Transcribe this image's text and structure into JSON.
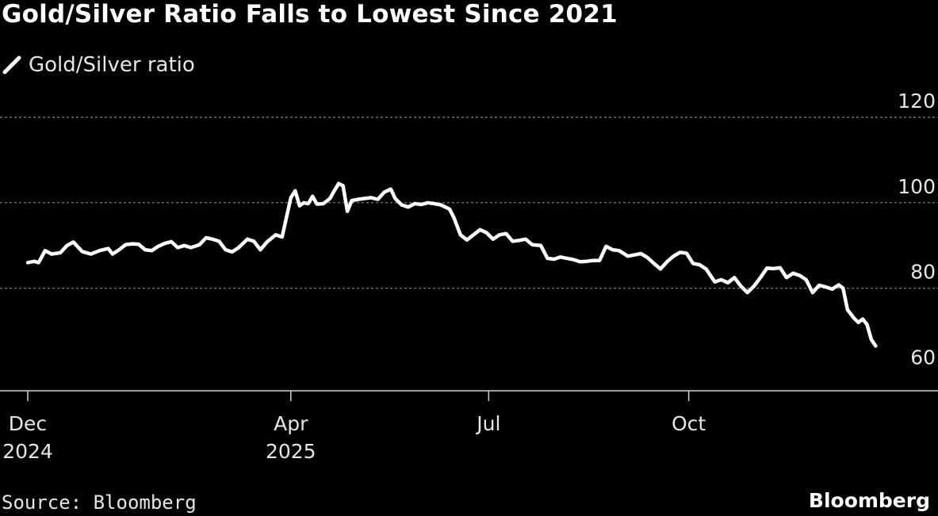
{
  "header": {
    "title": "Gold/Silver Ratio Falls to Lowest Since 2021"
  },
  "footer": {
    "source": "Source: Bloomberg",
    "brand": "Bloomberg"
  },
  "colors": {
    "background": "#000000",
    "line": "#ffffff",
    "grid": "#8a8a8a",
    "text": "#e6e6e6"
  },
  "chart_data": {
    "type": "line",
    "title": "Gold/Silver Ratio Falls to Lowest Since 2021",
    "legend": {
      "entries": [
        "Gold/Silver ratio"
      ],
      "placement": "top-left"
    },
    "grid": true,
    "ylim": [
      60,
      120
    ],
    "yticks": [
      60,
      80,
      100,
      120
    ],
    "y_axis_side": "right",
    "xlim": [
      "2024-12-01",
      "2025-12-31"
    ],
    "xticks": [
      {
        "date": "2024-12-01",
        "label": [
          "Dec",
          "2024"
        ]
      },
      {
        "date": "2025-04-01",
        "label": [
          "Apr",
          "2025"
        ]
      },
      {
        "date": "2025-07-01",
        "label": [
          "Jul"
        ]
      },
      {
        "date": "2025-10-01",
        "label": [
          "Oct"
        ]
      }
    ],
    "series": [
      {
        "name": "Gold/Silver ratio",
        "points": [
          [
            "2024-12-01",
            86.0
          ],
          [
            "2024-12-04",
            86.3
          ],
          [
            "2024-12-06",
            86.0
          ],
          [
            "2024-12-09",
            88.8
          ],
          [
            "2024-12-12",
            88.0
          ],
          [
            "2024-12-16",
            88.3
          ],
          [
            "2024-12-19",
            90.0
          ],
          [
            "2024-12-22",
            90.8
          ],
          [
            "2024-12-26",
            88.6
          ],
          [
            "2024-12-30",
            88.0
          ],
          [
            "2025-01-03",
            88.8
          ],
          [
            "2025-01-07",
            89.3
          ],
          [
            "2025-01-09",
            88.0
          ],
          [
            "2025-01-12",
            89.0
          ],
          [
            "2025-01-15",
            90.2
          ],
          [
            "2025-01-18",
            90.4
          ],
          [
            "2025-01-21",
            90.3
          ],
          [
            "2025-01-24",
            89.0
          ],
          [
            "2025-01-27",
            88.8
          ],
          [
            "2025-01-30",
            89.8
          ],
          [
            "2025-02-02",
            90.5
          ],
          [
            "2025-02-05",
            90.9
          ],
          [
            "2025-02-08",
            89.5
          ],
          [
            "2025-02-11",
            90.0
          ],
          [
            "2025-02-14",
            89.5
          ],
          [
            "2025-02-18",
            90.2
          ],
          [
            "2025-02-21",
            91.8
          ],
          [
            "2025-02-24",
            91.5
          ],
          [
            "2025-02-27",
            91.0
          ],
          [
            "2025-03-02",
            89.0
          ],
          [
            "2025-03-05",
            88.5
          ],
          [
            "2025-03-08",
            89.5
          ],
          [
            "2025-03-12",
            91.5
          ],
          [
            "2025-03-15",
            91.0
          ],
          [
            "2025-03-18",
            89.0
          ],
          [
            "2025-03-21",
            90.8
          ],
          [
            "2025-03-25",
            92.5
          ],
          [
            "2025-03-28",
            92.0
          ],
          [
            "2025-04-01",
            101.2
          ],
          [
            "2025-04-03",
            102.8
          ],
          [
            "2025-04-05",
            99.3
          ],
          [
            "2025-04-07",
            100.0
          ],
          [
            "2025-04-09",
            99.8
          ],
          [
            "2025-04-11",
            101.5
          ],
          [
            "2025-04-13",
            99.7
          ],
          [
            "2025-04-16",
            99.8
          ],
          [
            "2025-04-19",
            101.0
          ],
          [
            "2025-04-21",
            102.8
          ],
          [
            "2025-04-23",
            104.5
          ],
          [
            "2025-04-25",
            104.0
          ],
          [
            "2025-04-27",
            98.0
          ],
          [
            "2025-04-29",
            100.5
          ],
          [
            "2025-05-02",
            100.8
          ],
          [
            "2025-05-05",
            101.0
          ],
          [
            "2025-05-08",
            101.2
          ],
          [
            "2025-05-11",
            100.8
          ],
          [
            "2025-05-14",
            102.5
          ],
          [
            "2025-05-17",
            103.2
          ],
          [
            "2025-05-19",
            101.0
          ],
          [
            "2025-05-22",
            99.5
          ],
          [
            "2025-05-25",
            99.0
          ],
          [
            "2025-05-28",
            99.8
          ],
          [
            "2025-05-31",
            99.6
          ],
          [
            "2025-06-03",
            100.0
          ],
          [
            "2025-06-06",
            99.8
          ],
          [
            "2025-06-09",
            99.5
          ],
          [
            "2025-06-13",
            98.5
          ],
          [
            "2025-06-15",
            96.5
          ],
          [
            "2025-06-18",
            92.5
          ],
          [
            "2025-06-21",
            91.3
          ],
          [
            "2025-06-24",
            92.5
          ],
          [
            "2025-06-27",
            93.7
          ],
          [
            "2025-06-30",
            93.0
          ],
          [
            "2025-07-03",
            91.5
          ],
          [
            "2025-07-06",
            92.5
          ],
          [
            "2025-07-09",
            92.8
          ],
          [
            "2025-07-12",
            91.0
          ],
          [
            "2025-07-15",
            91.2
          ],
          [
            "2025-07-18",
            91.5
          ],
          [
            "2025-07-21",
            90.2
          ],
          [
            "2025-07-25",
            90.0
          ],
          [
            "2025-07-28",
            87.0
          ],
          [
            "2025-07-31",
            86.8
          ],
          [
            "2025-08-03",
            87.3
          ],
          [
            "2025-08-06",
            87.0
          ],
          [
            "2025-08-09",
            86.7
          ],
          [
            "2025-08-12",
            86.2
          ],
          [
            "2025-08-15",
            86.3
          ],
          [
            "2025-08-18",
            86.5
          ],
          [
            "2025-08-21",
            86.5
          ],
          [
            "2025-08-24",
            89.8
          ],
          [
            "2025-08-27",
            89.0
          ],
          [
            "2025-08-30",
            88.8
          ],
          [
            "2025-09-03",
            87.5
          ],
          [
            "2025-09-06",
            87.8
          ],
          [
            "2025-09-09",
            88.1
          ],
          [
            "2025-09-12",
            87.2
          ],
          [
            "2025-09-15",
            85.8
          ],
          [
            "2025-09-18",
            84.5
          ],
          [
            "2025-09-21",
            86.2
          ],
          [
            "2025-09-24",
            87.5
          ],
          [
            "2025-09-27",
            88.4
          ],
          [
            "2025-09-30",
            88.2
          ],
          [
            "2025-10-03",
            85.8
          ],
          [
            "2025-10-06",
            85.5
          ],
          [
            "2025-10-09",
            84.5
          ],
          [
            "2025-10-13",
            81.5
          ],
          [
            "2025-10-16",
            82.0
          ],
          [
            "2025-10-19",
            81.3
          ],
          [
            "2025-10-22",
            82.5
          ],
          [
            "2025-10-25",
            80.5
          ],
          [
            "2025-10-28",
            79.0
          ],
          [
            "2025-10-31",
            80.5
          ],
          [
            "2025-11-03",
            82.5
          ],
          [
            "2025-11-06",
            84.7
          ],
          [
            "2025-11-09",
            84.6
          ],
          [
            "2025-11-12",
            84.8
          ],
          [
            "2025-11-15",
            82.5
          ],
          [
            "2025-11-18",
            83.5
          ],
          [
            "2025-11-21",
            83.0
          ],
          [
            "2025-11-24",
            82.0
          ],
          [
            "2025-11-27",
            79.0
          ],
          [
            "2025-11-30",
            80.7
          ],
          [
            "2025-12-03",
            80.3
          ],
          [
            "2025-12-06",
            79.8
          ],
          [
            "2025-12-09",
            80.8
          ],
          [
            "2025-12-11",
            80.0
          ],
          [
            "2025-12-13",
            75.0
          ],
          [
            "2025-12-16",
            73.0
          ],
          [
            "2025-12-18",
            72.0
          ],
          [
            "2025-12-20",
            72.8
          ],
          [
            "2025-12-22",
            71.5
          ],
          [
            "2025-12-24",
            68.0
          ],
          [
            "2025-12-26",
            66.5
          ]
        ]
      }
    ]
  }
}
